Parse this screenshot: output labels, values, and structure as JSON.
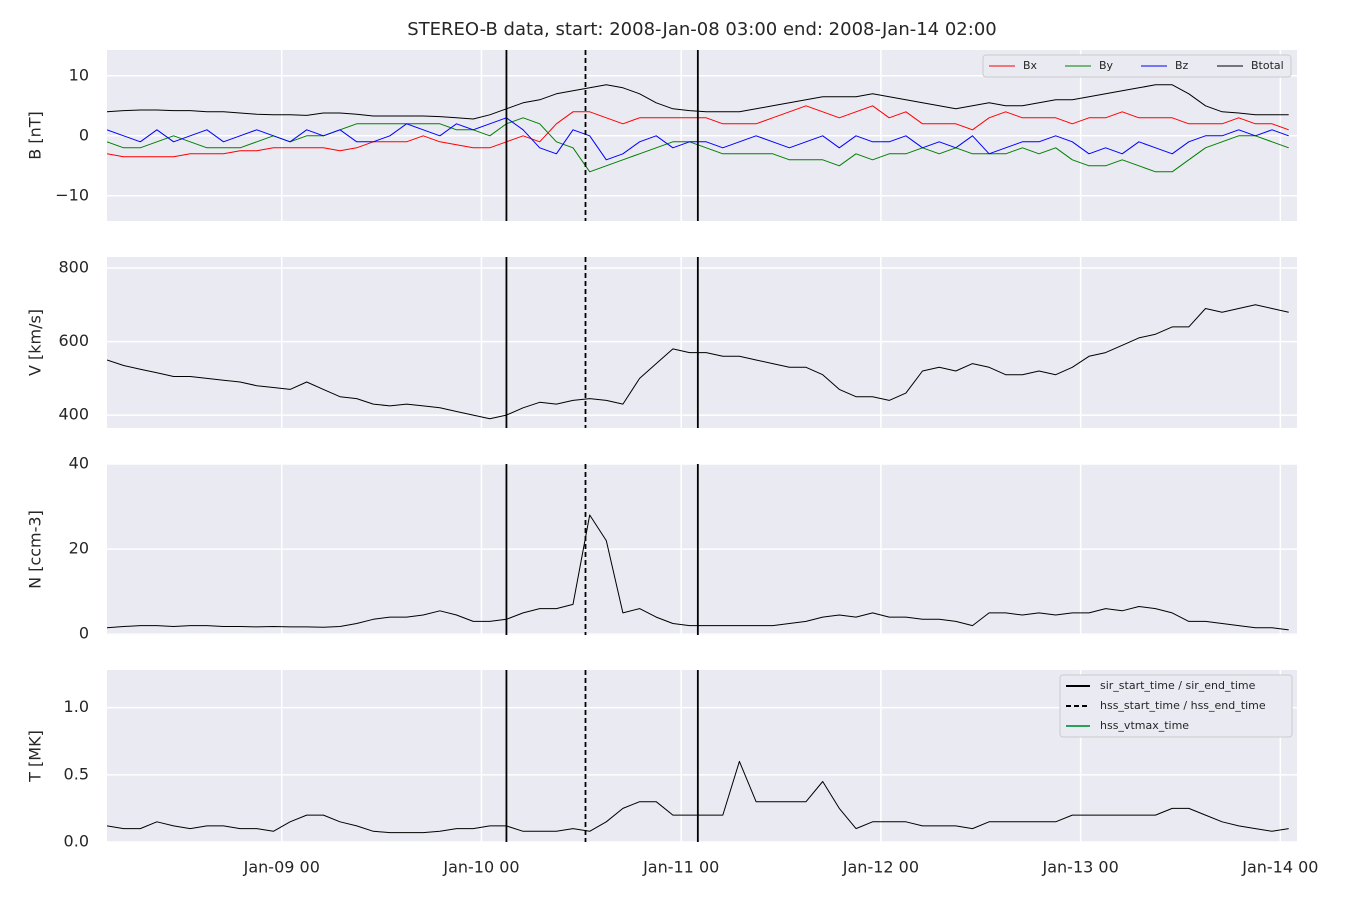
{
  "chart_data": {
    "type": "line",
    "title": "STEREO-B data, start: 2008-Jan-08 03:00  end: 2008-Jan-14 02:00",
    "x": [
      "2008-01-08T03:00",
      "2008-01-08T05:00",
      "2008-01-08T07:00",
      "2008-01-08T09:00",
      "2008-01-08T11:00",
      "2008-01-08T13:00",
      "2008-01-08T15:00",
      "2008-01-08T17:00",
      "2008-01-08T19:00",
      "2008-01-08T21:00",
      "2008-01-08T23:00",
      "2008-01-09T01:00",
      "2008-01-09T03:00",
      "2008-01-09T05:00",
      "2008-01-09T07:00",
      "2008-01-09T09:00",
      "2008-01-09T11:00",
      "2008-01-09T13:00",
      "2008-01-09T15:00",
      "2008-01-09T17:00",
      "2008-01-09T19:00",
      "2008-01-09T21:00",
      "2008-01-09T23:00",
      "2008-01-10T01:00",
      "2008-01-10T03:00",
      "2008-01-10T05:00",
      "2008-01-10T07:00",
      "2008-01-10T09:00",
      "2008-01-10T11:00",
      "2008-01-10T13:00",
      "2008-01-10T15:00",
      "2008-01-10T17:00",
      "2008-01-10T19:00",
      "2008-01-10T21:00",
      "2008-01-10T23:00",
      "2008-01-11T01:00",
      "2008-01-11T03:00",
      "2008-01-11T05:00",
      "2008-01-11T07:00",
      "2008-01-11T09:00",
      "2008-01-11T11:00",
      "2008-01-11T13:00",
      "2008-01-11T15:00",
      "2008-01-11T17:00",
      "2008-01-11T19:00",
      "2008-01-11T21:00",
      "2008-01-11T23:00",
      "2008-01-12T01:00",
      "2008-01-12T03:00",
      "2008-01-12T05:00",
      "2008-01-12T07:00",
      "2008-01-12T09:00",
      "2008-01-12T11:00",
      "2008-01-12T13:00",
      "2008-01-12T15:00",
      "2008-01-12T17:00",
      "2008-01-12T19:00",
      "2008-01-12T21:00",
      "2008-01-12T23:00",
      "2008-01-13T01:00",
      "2008-01-13T03:00",
      "2008-01-13T05:00",
      "2008-01-13T07:00",
      "2008-01-13T09:00",
      "2008-01-13T11:00",
      "2008-01-13T13:00",
      "2008-01-13T15:00",
      "2008-01-13T17:00",
      "2008-01-13T19:00",
      "2008-01-13T21:00",
      "2008-01-13T23:00",
      "2008-01-14T01:00"
    ],
    "xlim": [
      "2008-01-08T03:00",
      "2008-01-14T02:00"
    ],
    "xticks": [
      {
        "value": "2008-01-09T00:00",
        "label": "Jan-09 00"
      },
      {
        "value": "2008-01-10T00:00",
        "label": "Jan-10 00"
      },
      {
        "value": "2008-01-11T00:00",
        "label": "Jan-11 00"
      },
      {
        "value": "2008-01-12T00:00",
        "label": "Jan-12 00"
      },
      {
        "value": "2008-01-13T00:00",
        "label": "Jan-13 00"
      },
      {
        "value": "2008-01-14T00:00",
        "label": "Jan-14 00"
      }
    ],
    "grid": true,
    "events": [
      {
        "time": "2008-01-10T03:00",
        "dash": false
      },
      {
        "time": "2008-01-10T12:30",
        "dash": true
      },
      {
        "time": "2008-01-11T02:00",
        "dash": false
      }
    ],
    "event_legend": [
      {
        "name": "sir_start_time / sir_end_time",
        "color": "#000000",
        "dash": false
      },
      {
        "name": "hss_start_time / hss_end_time",
        "color": "#000000",
        "dash": true
      },
      {
        "name": "hss_vtmax_time",
        "color": "#2ca05a",
        "dash": false
      }
    ],
    "panels": [
      {
        "ylabel": "B [nT]",
        "ylim": [
          -14.2,
          14.3
        ],
        "yticks": [
          {
            "value": -10,
            "label": "−10"
          },
          0,
          10
        ],
        "legend": "upper right",
        "series": [
          {
            "name": "Bx",
            "color": "#ff0000",
            "values": [
              -3,
              -3.5,
              -3.5,
              -3.5,
              -3.5,
              -3,
              -3,
              -3,
              -2.5,
              -2.5,
              -2,
              -2,
              -2,
              -2,
              -2.5,
              -2,
              -1,
              -1,
              -1,
              0,
              -1,
              -1.5,
              -2,
              -2,
              -1,
              0,
              -1,
              2,
              4,
              4,
              3,
              2,
              3,
              3,
              3,
              3,
              3,
              2,
              2,
              2,
              3,
              4,
              5,
              4,
              3,
              4,
              5,
              3,
              4,
              2,
              2,
              2,
              1,
              3,
              4,
              3,
              3,
              3,
              2,
              3,
              3,
              4,
              3,
              3,
              3,
              2,
              2,
              2,
              3,
              2,
              2,
              1
            ]
          },
          {
            "name": "By",
            "color": "#008000",
            "values": [
              -1,
              -2,
              -2,
              -1,
              0,
              -1,
              -2,
              -2,
              -2,
              -1,
              0,
              -1,
              0,
              0,
              1,
              2,
              2,
              2,
              2,
              2,
              2,
              1,
              1,
              0,
              2,
              3,
              2,
              -1,
              -2,
              -6,
              -5,
              -4,
              -3,
              -2,
              -1,
              -1,
              -2,
              -3,
              -3,
              -3,
              -3,
              -4,
              -4,
              -4,
              -5,
              -3,
              -4,
              -3,
              -3,
              -2,
              -3,
              -2,
              -3,
              -3,
              -3,
              -2,
              -3,
              -2,
              -4,
              -5,
              -5,
              -4,
              -5,
              -6,
              -6,
              -4,
              -2,
              -1,
              0,
              0,
              -1,
              -2
            ]
          },
          {
            "name": "Bz",
            "color": "#0000ff",
            "values": [
              1,
              0,
              -1,
              1,
              -1,
              0,
              1,
              -1,
              0,
              1,
              0,
              -1,
              1,
              0,
              1,
              -1,
              -1,
              0,
              2,
              1,
              0,
              2,
              1,
              2,
              3,
              1,
              -2,
              -3,
              1,
              0,
              -4,
              -3,
              -1,
              0,
              -2,
              -1,
              -1,
              -2,
              -1,
              0,
              -1,
              -2,
              -1,
              0,
              -2,
              0,
              -1,
              -1,
              0,
              -2,
              -1,
              -2,
              0,
              -3,
              -2,
              -1,
              -1,
              0,
              -1,
              -3,
              -2,
              -3,
              -1,
              -2,
              -3,
              -1,
              0,
              0,
              1,
              0,
              1,
              0
            ]
          },
          {
            "name": "Btotal",
            "color": "#000000",
            "values": [
              4,
              4.2,
              4.3,
              4.3,
              4.2,
              4.2,
              4,
              4,
              3.8,
              3.6,
              3.5,
              3.5,
              3.4,
              3.8,
              3.8,
              3.6,
              3.3,
              3.3,
              3.3,
              3.3,
              3.2,
              3,
              2.8,
              3.5,
              4.5,
              5.5,
              6,
              7,
              7.5,
              8,
              8.5,
              8,
              7,
              5.5,
              4.5,
              4.2,
              4,
              4,
              4,
              4.5,
              5,
              5.5,
              6,
              6.5,
              6.5,
              6.5,
              7,
              6.5,
              6,
              5.5,
              5,
              4.5,
              5,
              5.5,
              5,
              5,
              5.5,
              6,
              6,
              6.5,
              7,
              7.5,
              8,
              8.5,
              8.5,
              7,
              5,
              4,
              3.8,
              3.5,
              3.5,
              3.5
            ]
          }
        ]
      },
      {
        "ylabel": "V [km/s]",
        "ylim": [
          365,
          830
        ],
        "yticks": [
          400,
          600,
          800
        ],
        "series": [
          {
            "color": "#000000",
            "values": [
              550,
              535,
              525,
              515,
              505,
              505,
              500,
              495,
              490,
              480,
              475,
              470,
              490,
              470,
              450,
              445,
              430,
              425,
              430,
              425,
              420,
              410,
              400,
              390,
              400,
              420,
              435,
              430,
              440,
              445,
              440,
              430,
              500,
              540,
              580,
              570,
              570,
              560,
              560,
              550,
              540,
              530,
              530,
              510,
              470,
              450,
              450,
              440,
              460,
              520,
              530,
              520,
              540,
              530,
              510,
              510,
              520,
              510,
              530,
              560,
              570,
              590,
              610,
              620,
              640,
              640,
              690,
              680,
              690,
              700,
              690,
              680
            ]
          }
        ]
      },
      {
        "ylabel": "N [ccm-3]",
        "ylim": [
          -0.2,
          40
        ],
        "yticks": [
          0,
          20,
          40
        ],
        "series": [
          {
            "color": "#000000",
            "values": [
              1.5,
              1.8,
              2,
              2,
              1.8,
              2,
              2,
              1.8,
              1.8,
              1.7,
              1.8,
              1.7,
              1.7,
              1.6,
              1.8,
              2.5,
              3.5,
              4,
              4,
              4.5,
              5.5,
              4.5,
              3,
              3,
              3.5,
              5,
              6,
              6,
              7,
              28,
              22,
              5,
              6,
              4,
              2.5,
              2,
              2,
              2,
              2,
              2,
              2,
              2.5,
              3,
              4,
              4.5,
              4,
              5,
              4,
              4,
              3.5,
              3.5,
              3,
              2,
              5,
              5,
              4.5,
              5,
              4.5,
              5,
              5,
              6,
              5.5,
              6.5,
              6,
              5,
              3,
              3,
              2.5,
              2,
              1.5,
              1.5,
              1
            ]
          }
        ]
      },
      {
        "ylabel": "T [MK]",
        "ylim": [
          0,
          1.28
        ],
        "yticks": [
          {
            "value": 0,
            "label": "0.0"
          },
          {
            "value": 0.5,
            "label": "0.5"
          },
          {
            "value": 1,
            "label": "1.0"
          }
        ],
        "series": [
          {
            "color": "#000000",
            "values": [
              0.12,
              0.1,
              0.1,
              0.15,
              0.12,
              0.1,
              0.12,
              0.12,
              0.1,
              0.1,
              0.08,
              0.15,
              0.2,
              0.2,
              0.15,
              0.12,
              0.08,
              0.07,
              0.07,
              0.07,
              0.08,
              0.1,
              0.1,
              0.12,
              0.12,
              0.08,
              0.08,
              0.08,
              0.1,
              0.08,
              0.15,
              0.25,
              0.3,
              0.3,
              0.2,
              0.2,
              0.2,
              0.2,
              0.6,
              0.3,
              0.3,
              0.3,
              0.3,
              0.45,
              0.25,
              0.1,
              0.15,
              0.15,
              0.15,
              0.12,
              0.12,
              0.12,
              0.1,
              0.15,
              0.15,
              0.15,
              0.15,
              0.15,
              0.2,
              0.2,
              0.2,
              0.2,
              0.2,
              0.2,
              0.25,
              0.25,
              0.2,
              0.15,
              0.12,
              0.1,
              0.08,
              0.1
            ]
          }
        ]
      }
    ]
  }
}
